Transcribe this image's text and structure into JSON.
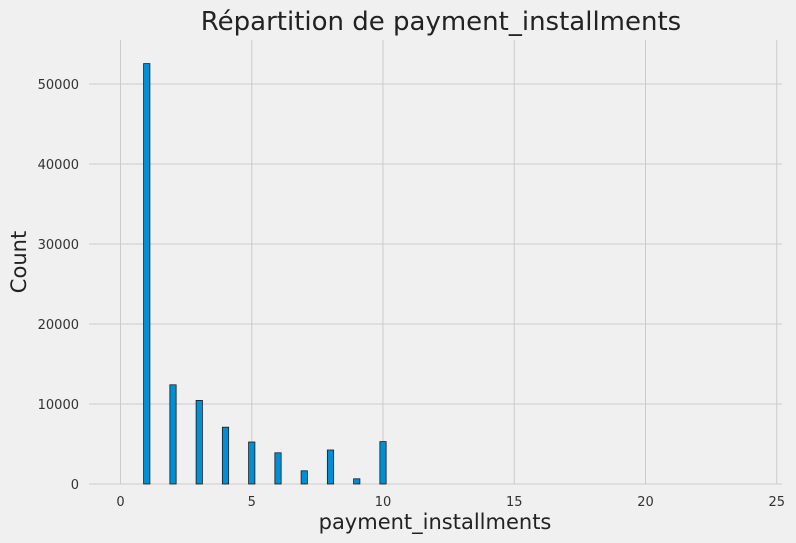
{
  "chart_data": {
    "type": "bar",
    "title": "Répartition de payment_installments",
    "xlabel": "payment_installments",
    "ylabel": "Count",
    "xlim": [
      -1.2,
      25.2
    ],
    "ylim": [
      0,
      55500
    ],
    "xticks": [
      0,
      5,
      10,
      15,
      20,
      25
    ],
    "yticks": [
      0,
      10000,
      20000,
      30000,
      40000,
      50000
    ],
    "grid": true,
    "colors": {
      "bar": "#008fd5",
      "edge": "#1a1a1a",
      "background": "#f0f0f0",
      "grid": "#cbcbcb"
    },
    "x": [
      1,
      2,
      3,
      4,
      5,
      6,
      7,
      8,
      9,
      10
    ],
    "values": [
      52550,
      12400,
      10450,
      7100,
      5250,
      3900,
      1650,
      4250,
      650,
      5300
    ]
  }
}
